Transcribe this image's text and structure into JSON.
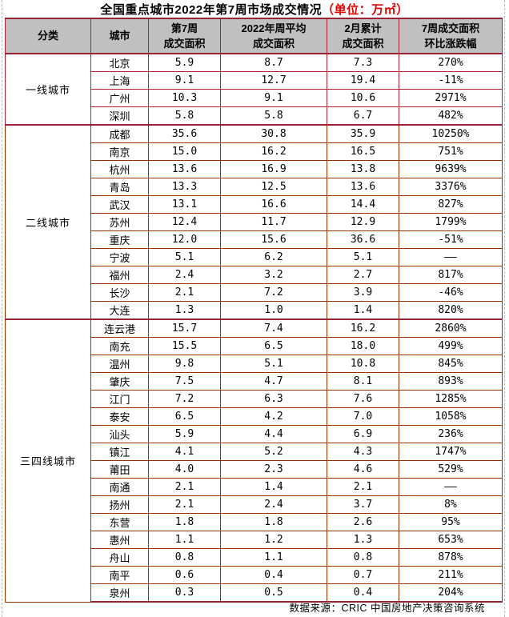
{
  "chart_data": {
    "type": "table",
    "title": "全国重点城市2022年第7周市场成交情况",
    "unit_label": "（单位：万㎡）",
    "columns": [
      "分类",
      "城市",
      "第7周\n成交面积",
      "2022年周平均\n成交面积",
      "2月累计\n成交面积",
      "7周成交面积\n环比涨跌幅"
    ],
    "groups": [
      {
        "category": "一线城市",
        "tier": "tier1",
        "rows": [
          [
            "北京",
            "5.9",
            "8.7",
            "7.3",
            "270%"
          ],
          [
            "上海",
            "9.1",
            "12.7",
            "19.4",
            "-11%"
          ],
          [
            "广州",
            "10.3",
            "9.1",
            "10.6",
            "2971%"
          ],
          [
            "深圳",
            "5.8",
            "5.8",
            "6.7",
            "482%"
          ]
        ]
      },
      {
        "category": "二线城市",
        "tier": "tier2",
        "rows": [
          [
            "成都",
            "35.6",
            "30.8",
            "35.9",
            "10250%"
          ],
          [
            "南京",
            "15.0",
            "16.2",
            "16.5",
            "751%"
          ],
          [
            "杭州",
            "13.6",
            "16.9",
            "13.8",
            "9639%"
          ],
          [
            "青岛",
            "13.3",
            "12.5",
            "13.6",
            "3376%"
          ],
          [
            "武汉",
            "13.1",
            "16.6",
            "14.4",
            "827%"
          ],
          [
            "苏州",
            "12.4",
            "11.7",
            "12.9",
            "1799%"
          ],
          [
            "重庆",
            "12.0",
            "15.6",
            "36.6",
            "-51%"
          ],
          [
            "宁波",
            "5.1",
            "6.2",
            "5.1",
            "——"
          ],
          [
            "福州",
            "2.4",
            "3.2",
            "2.7",
            "817%"
          ],
          [
            "长沙",
            "2.1",
            "7.2",
            "3.9",
            "-46%"
          ],
          [
            "大连",
            "1.3",
            "1.0",
            "1.4",
            "820%"
          ]
        ]
      },
      {
        "category": "三四线城市",
        "tier": "tier3",
        "rows": [
          [
            "连云港",
            "15.7",
            "7.4",
            "16.2",
            "2860%"
          ],
          [
            "南充",
            "15.5",
            "6.5",
            "18.0",
            "499%"
          ],
          [
            "温州",
            "9.8",
            "5.1",
            "10.8",
            "845%"
          ],
          [
            "肇庆",
            "7.5",
            "4.7",
            "8.1",
            "893%"
          ],
          [
            "江门",
            "7.2",
            "6.3",
            "7.6",
            "1285%"
          ],
          [
            "泰安",
            "6.5",
            "4.2",
            "7.0",
            "1058%"
          ],
          [
            "汕头",
            "5.9",
            "4.4",
            "6.9",
            "236%"
          ],
          [
            "镇江",
            "4.1",
            "5.2",
            "4.3",
            "1747%"
          ],
          [
            "莆田",
            "4.0",
            "2.3",
            "4.6",
            "529%"
          ],
          [
            "南通",
            "2.1",
            "1.4",
            "2.1",
            "——"
          ],
          [
            "扬州",
            "2.1",
            "2.4",
            "3.7",
            "8%"
          ],
          [
            "东营",
            "1.8",
            "1.8",
            "2.6",
            "95%"
          ],
          [
            "惠州",
            "1.1",
            "1.2",
            "1.3",
            "653%"
          ],
          [
            "舟山",
            "0.8",
            "1.1",
            "0.8",
            "878%"
          ],
          [
            "南平",
            "0.6",
            "0.4",
            "0.7",
            "211%"
          ],
          [
            "泉州",
            "0.3",
            "0.5",
            "0.4",
            "204%"
          ]
        ]
      }
    ],
    "source": "数据来源：CRIC 中国房地产决策咨询系统"
  },
  "colors": {
    "header_bg": "#c0c0c0",
    "header_border": "#9b2335",
    "tier1_border": "#b02430",
    "row_border": "#993300",
    "unit_text": "#e60000"
  }
}
